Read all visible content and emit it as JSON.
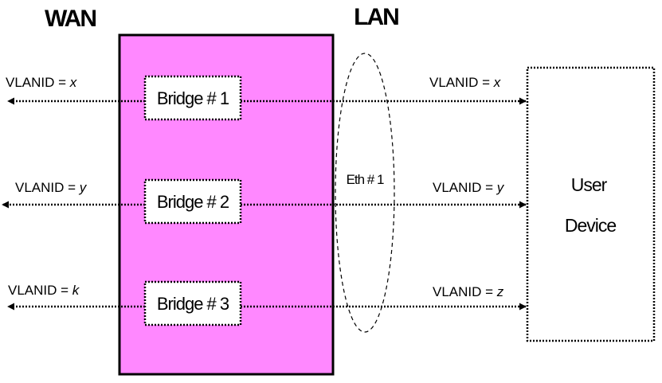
{
  "headings": {
    "wan": "WAN",
    "lan": "LAN"
  },
  "bridges": [
    {
      "label": "Bridge # 1",
      "wan_vlan_prefix": "VLANID = ",
      "wan_vlan_var": "x",
      "lan_vlan_prefix": "VLANID = ",
      "lan_vlan_var": "x"
    },
    {
      "label": "Bridge # 2",
      "wan_vlan_prefix": "VLANID = ",
      "wan_vlan_var": "y",
      "lan_vlan_prefix": "VLANID = ",
      "lan_vlan_var": "y"
    },
    {
      "label": "Bridge # 3",
      "wan_vlan_prefix": "VLANID = ",
      "wan_vlan_var": "k",
      "lan_vlan_prefix": "VLANID = ",
      "lan_vlan_var": "z"
    }
  ],
  "ethernet": {
    "label": "Eth # 1"
  },
  "user_device": {
    "line1": "User",
    "line2": "Device"
  },
  "colors": {
    "gateway_fill": "#ff88ff",
    "stroke": "#000000",
    "background": "#ffffff"
  }
}
